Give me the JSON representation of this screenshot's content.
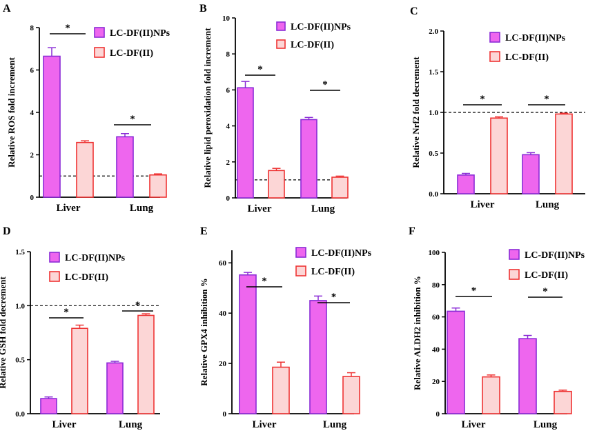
{
  "colors": {
    "np_fill": "#ee66ee",
    "np_stroke": "#8a2bd6",
    "df_fill": "#fcd6d6",
    "df_stroke": "#ee3333"
  },
  "legend": [
    "LC-DF(II)NPs",
    "LC-DF(II)"
  ],
  "chart_data": [
    {
      "panel": "A",
      "type": "bar",
      "ylabel": "Relative ROS fold increment",
      "categories": [
        "Liver",
        "Lung"
      ],
      "yticks": [
        "0",
        "2",
        "4",
        "6",
        "8"
      ],
      "ylim": [
        0,
        8
      ],
      "reference_line": 1.0,
      "series": [
        {
          "name": "LC-DF(II)NPs",
          "values": [
            6.65,
            2.85
          ],
          "errors": [
            0.4,
            0.15
          ]
        },
        {
          "name": "LC-DF(II)",
          "values": [
            2.58,
            1.05
          ],
          "errors": [
            0.08,
            0.05
          ]
        }
      ],
      "significance": [
        "*",
        "*"
      ]
    },
    {
      "panel": "B",
      "type": "bar",
      "ylabel": "Relative lipid peroxidation fold increment",
      "categories": [
        "Liver",
        "Lung"
      ],
      "yticks": [
        "0",
        "2",
        "4",
        "6",
        "8",
        "10"
      ],
      "ylim": [
        0,
        10
      ],
      "reference_line": 1.0,
      "series": [
        {
          "name": "LC-DF(II)NPs",
          "values": [
            6.12,
            4.35
          ],
          "errors": [
            0.35,
            0.12
          ]
        },
        {
          "name": "LC-DF(II)",
          "values": [
            1.52,
            1.15
          ],
          "errors": [
            0.12,
            0.06
          ]
        }
      ],
      "significance": [
        "*",
        "*"
      ]
    },
    {
      "panel": "C",
      "type": "bar",
      "ylabel": "Relative Nrf2 fold decrement",
      "categories": [
        "Liver",
        "Lung"
      ],
      "yticks": [
        "0.0",
        "0.5",
        "1.0",
        "1.5",
        "2.0"
      ],
      "ylim": [
        0,
        2
      ],
      "reference_line": 1.0,
      "series": [
        {
          "name": "LC-DF(II)NPs",
          "values": [
            0.23,
            0.48
          ],
          "errors": [
            0.02,
            0.025
          ]
        },
        {
          "name": "LC-DF(II)",
          "values": [
            0.93,
            0.98
          ],
          "errors": [
            0.015,
            0.01
          ]
        }
      ],
      "significance": [
        "*",
        "*"
      ]
    },
    {
      "panel": "D",
      "type": "bar",
      "ylabel": "Relative GSH fold decrement",
      "categories": [
        "Liver",
        "Lung"
      ],
      "yticks": [
        "0.0",
        "0.5",
        "1.0",
        "1.5"
      ],
      "ylim": [
        0,
        1.5
      ],
      "reference_line": 1.0,
      "series": [
        {
          "name": "LC-DF(II)NPs",
          "values": [
            0.14,
            0.47
          ],
          "errors": [
            0.015,
            0.015
          ]
        },
        {
          "name": "LC-DF(II)",
          "values": [
            0.79,
            0.91
          ],
          "errors": [
            0.03,
            0.015
          ]
        }
      ],
      "significance": [
        "*",
        "*"
      ]
    },
    {
      "panel": "E",
      "type": "bar",
      "ylabel": "Relative GPX4 inhibition %",
      "categories": [
        "Liver",
        "Lung"
      ],
      "yticks": [
        "0",
        "20",
        "40",
        "60"
      ],
      "ylim": [
        0,
        65
      ],
      "reference_line": null,
      "series": [
        {
          "name": "LC-DF(II)NPs",
          "values": [
            55.2,
            45.0
          ],
          "errors": [
            1.0,
            1.8
          ]
        },
        {
          "name": "LC-DF(II)",
          "values": [
            18.5,
            14.8
          ],
          "errors": [
            2.0,
            1.5
          ]
        }
      ],
      "significance": [
        "*",
        "*"
      ]
    },
    {
      "panel": "F",
      "type": "bar",
      "ylabel": "Relative ALDH2 inhibition %",
      "categories": [
        "Liver",
        "Lung"
      ],
      "yticks": [
        "0",
        "20",
        "40",
        "60",
        "80",
        "100"
      ],
      "ylim": [
        0,
        100
      ],
      "reference_line": null,
      "series": [
        {
          "name": "LC-DF(II)NPs",
          "values": [
            63.5,
            46.5
          ],
          "errors": [
            2.0,
            2.0
          ]
        },
        {
          "name": "LC-DF(II)",
          "values": [
            22.8,
            13.8
          ],
          "errors": [
            1.2,
            0.8
          ]
        }
      ],
      "significance": [
        "*",
        "*"
      ]
    }
  ]
}
